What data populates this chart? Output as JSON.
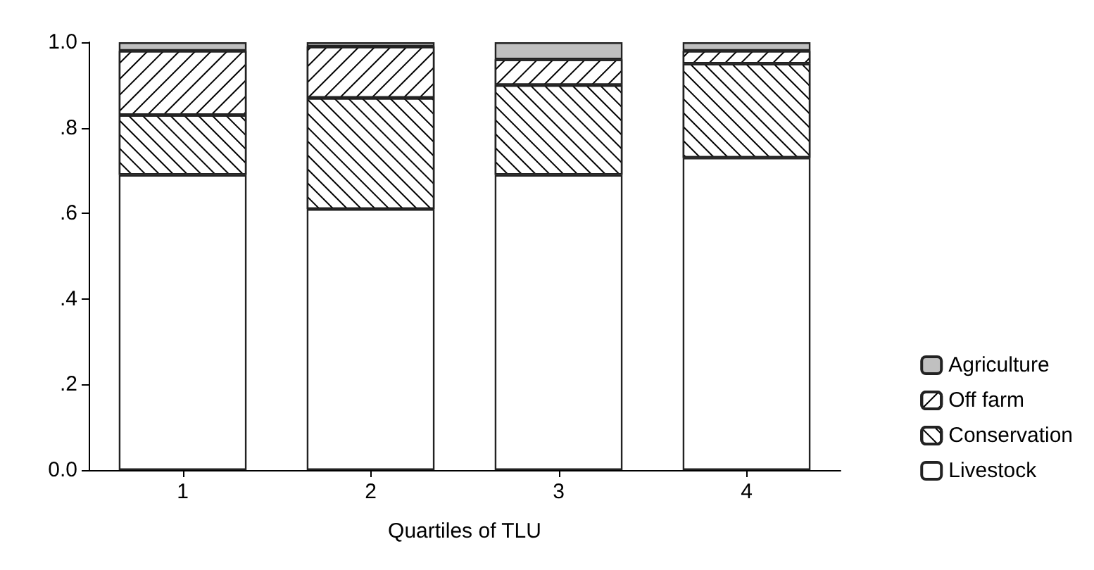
{
  "chart_data": {
    "type": "bar",
    "stacked": true,
    "xlabel": "Quartiles of TLU",
    "categories": [
      "1",
      "2",
      "3",
      "4"
    ],
    "series": [
      {
        "name": "Livestock",
        "color": "#ffffff",
        "values": [
          0.69,
          0.61,
          0.69,
          0.73
        ]
      },
      {
        "name": "Conservation",
        "color": "#ffffff",
        "values": [
          0.14,
          0.26,
          0.21,
          0.22
        ]
      },
      {
        "name": "Off farm",
        "color": "#ffffff",
        "values": [
          0.15,
          0.12,
          0.06,
          0.03
        ]
      },
      {
        "name": "Agriculture",
        "color": "#c0c0c0",
        "values": [
          0.02,
          0.01,
          0.04,
          0.02
        ]
      }
    ],
    "ylim": [
      0,
      1
    ],
    "yticks": [
      {
        "value": 0,
        "label": "0.0"
      },
      {
        "value": 0.2,
        "label": ".2"
      },
      {
        "value": 0.4,
        "label": ".4"
      },
      {
        "value": 0.6,
        "label": ".6"
      },
      {
        "value": 0.8,
        "label": ".8"
      },
      {
        "value": 1,
        "label": "1.0"
      }
    ],
    "grid": false,
    "legend": "bottom right"
  }
}
